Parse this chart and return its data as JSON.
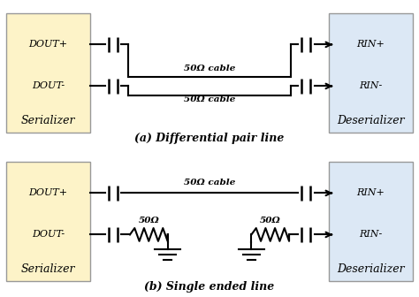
{
  "bg_color": "#ffffff",
  "serializer_color": "#fdf3c8",
  "deserializer_color": "#dce8f5",
  "box_edge_color": "#999999",
  "line_color": "#000000",
  "text_color": "#000000",
  "title_a": "(a) Differential pair line",
  "title_b": "(b) Single ended line",
  "cable_label": "50Ω cable",
  "resistor_label": "50Ω",
  "serializer_label": "Serializer",
  "deserializer_label": "Deserializer",
  "dout_plus": "DOUT+",
  "dout_minus": "DOUT-",
  "rin_plus": "RIN+",
  "rin_minus": "RIN-"
}
